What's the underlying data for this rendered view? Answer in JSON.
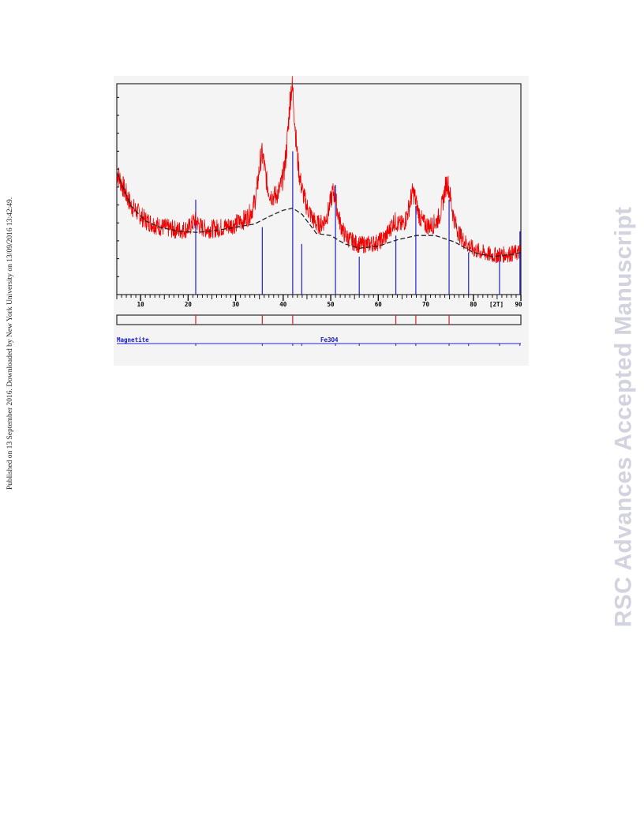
{
  "side_note": "Published on 13 September 2016. Downloaded by New York University on 13/09/2016 13:42:49.",
  "watermark": "RSC Advances Accepted Manuscript",
  "chart_data": {
    "type": "line",
    "title": "",
    "xlabel": "[2T]",
    "ylabel": "",
    "xlim": [
      5,
      90
    ],
    "ylim": [
      0,
      100
    ],
    "x_ticks": [
      10,
      20,
      30,
      40,
      50,
      60,
      70,
      80,
      90
    ],
    "grid": false,
    "colors": {
      "observed": "#ee0000",
      "background": "#222222",
      "reference": "#2222cc",
      "marker": "#cc2222"
    },
    "background_curve": {
      "x": [
        5,
        8,
        11,
        14,
        18,
        22,
        26,
        30,
        34,
        37,
        40,
        42,
        44,
        47,
        50,
        53,
        56,
        60,
        64,
        68,
        72,
        76,
        80,
        84,
        88,
        90
      ],
      "y": [
        58,
        42,
        35,
        32,
        30,
        29.5,
        30.5,
        32,
        33.5,
        37,
        40,
        41,
        38,
        29,
        28,
        24,
        22,
        23,
        26,
        28,
        28,
        25,
        20,
        18,
        19,
        20
      ]
    },
    "peaks": [
      {
        "position": 21.5,
        "height": 5
      },
      {
        "position": 35.5,
        "height": 29
      },
      {
        "position": 41.8,
        "height": 56
      },
      {
        "position": 50.6,
        "height": 20
      },
      {
        "position": 63.3,
        "height": 7
      },
      {
        "position": 67.3,
        "height": 19
      },
      {
        "position": 74.5,
        "height": 26
      }
    ],
    "reference_lines": [
      {
        "x": 21.6,
        "y": 45
      },
      {
        "x": 35.6,
        "y": 32
      },
      {
        "x": 42.0,
        "y": 68
      },
      {
        "x": 43.9,
        "y": 24
      },
      {
        "x": 51.0,
        "y": 52
      },
      {
        "x": 56.0,
        "y": 18
      },
      {
        "x": 63.7,
        "y": 28
      },
      {
        "x": 67.9,
        "y": 42
      },
      {
        "x": 74.9,
        "y": 45
      },
      {
        "x": 79.0,
        "y": 20
      },
      {
        "x": 85.5,
        "y": 22
      },
      {
        "x": 89.8,
        "y": 30
      }
    ],
    "phase_markers": [
      21.6,
      35.6,
      42.0,
      63.7,
      67.9,
      74.9
    ],
    "phase": {
      "name": "Magnetite",
      "formula": "Fe3O4"
    }
  }
}
